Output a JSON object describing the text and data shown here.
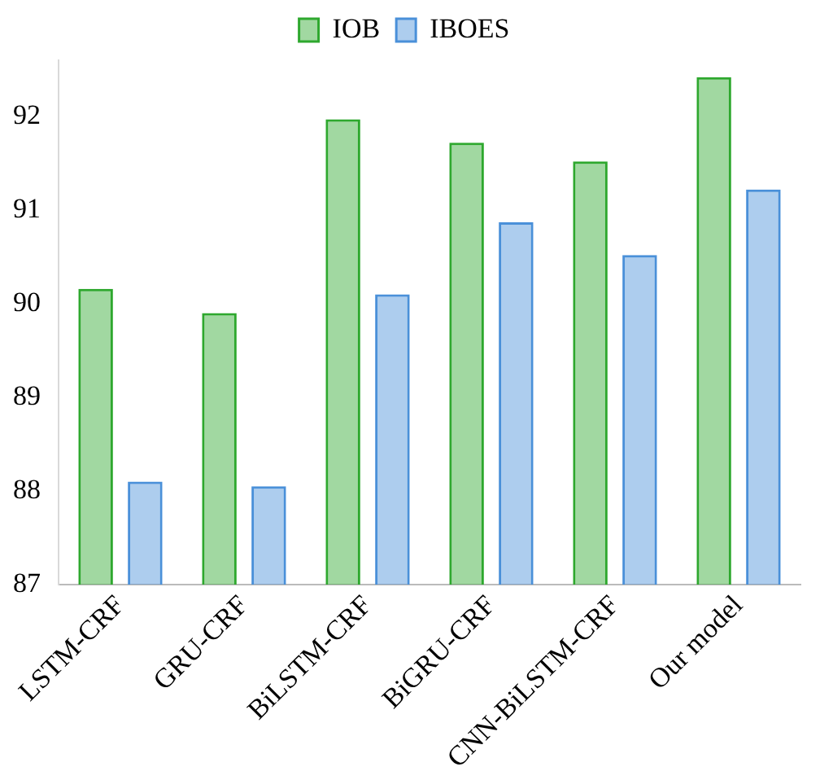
{
  "chart_data": {
    "type": "bar",
    "categories": [
      "LSTM-CRF",
      "GRU-CRF",
      "BiLSTM-CRF",
      "BiGRU-CRF",
      "CNN-BiLSTM-CRF",
      "Our model"
    ],
    "series": [
      {
        "name": "IOB",
        "color": "#2ea82e",
        "values": [
          90.16,
          89.9,
          91.97,
          91.72,
          91.52,
          92.42
        ]
      },
      {
        "name": "IBOES",
        "color": "#4a90d9",
        "values": [
          88.1,
          88.05,
          90.1,
          90.87,
          90.52,
          91.22
        ]
      }
    ],
    "ylim": [
      87,
      92.6
    ],
    "yticks": [
      87,
      88,
      89,
      90,
      91,
      92
    ],
    "grid": false,
    "legend": "top"
  }
}
